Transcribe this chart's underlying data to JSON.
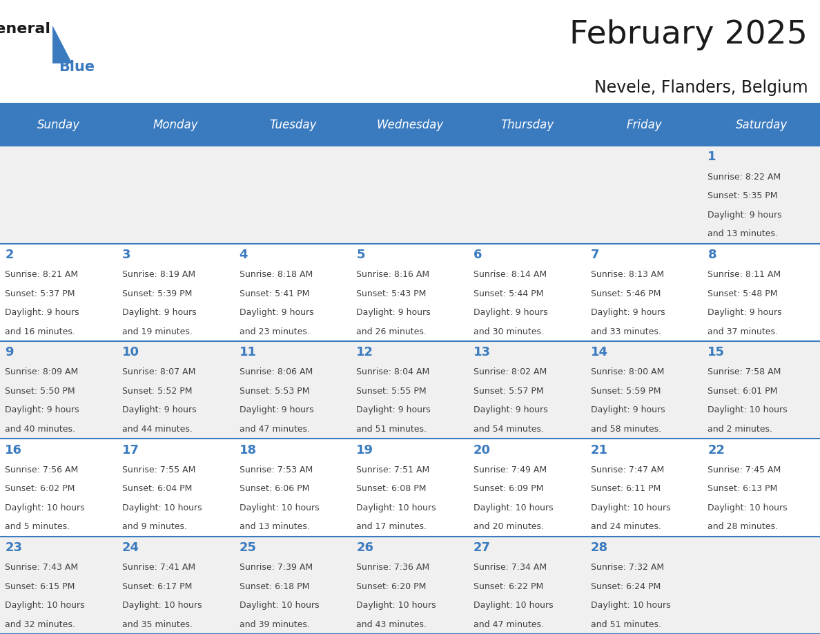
{
  "title": "February 2025",
  "subtitle": "Nevele, Flanders, Belgium",
  "header_color": "#3a7abf",
  "header_text_color": "#ffffff",
  "cell_bg_odd": "#f0f0f0",
  "cell_bg_even": "#ffffff",
  "day_text_color": "#3a7abf",
  "info_text_color": "#404040",
  "border_color": "#3a7abf",
  "days_of_week": [
    "Sunday",
    "Monday",
    "Tuesday",
    "Wednesday",
    "Thursday",
    "Friday",
    "Saturday"
  ],
  "weeks": [
    [
      {
        "day": null,
        "sunrise": null,
        "sunset": null,
        "daylight": null
      },
      {
        "day": null,
        "sunrise": null,
        "sunset": null,
        "daylight": null
      },
      {
        "day": null,
        "sunrise": null,
        "sunset": null,
        "daylight": null
      },
      {
        "day": null,
        "sunrise": null,
        "sunset": null,
        "daylight": null
      },
      {
        "day": null,
        "sunrise": null,
        "sunset": null,
        "daylight": null
      },
      {
        "day": null,
        "sunrise": null,
        "sunset": null,
        "daylight": null
      },
      {
        "day": 1,
        "sunrise": "8:22 AM",
        "sunset": "5:35 PM",
        "daylight": "9 hours\nand 13 minutes."
      }
    ],
    [
      {
        "day": 2,
        "sunrise": "8:21 AM",
        "sunset": "5:37 PM",
        "daylight": "9 hours\nand 16 minutes."
      },
      {
        "day": 3,
        "sunrise": "8:19 AM",
        "sunset": "5:39 PM",
        "daylight": "9 hours\nand 19 minutes."
      },
      {
        "day": 4,
        "sunrise": "8:18 AM",
        "sunset": "5:41 PM",
        "daylight": "9 hours\nand 23 minutes."
      },
      {
        "day": 5,
        "sunrise": "8:16 AM",
        "sunset": "5:43 PM",
        "daylight": "9 hours\nand 26 minutes."
      },
      {
        "day": 6,
        "sunrise": "8:14 AM",
        "sunset": "5:44 PM",
        "daylight": "9 hours\nand 30 minutes."
      },
      {
        "day": 7,
        "sunrise": "8:13 AM",
        "sunset": "5:46 PM",
        "daylight": "9 hours\nand 33 minutes."
      },
      {
        "day": 8,
        "sunrise": "8:11 AM",
        "sunset": "5:48 PM",
        "daylight": "9 hours\nand 37 minutes."
      }
    ],
    [
      {
        "day": 9,
        "sunrise": "8:09 AM",
        "sunset": "5:50 PM",
        "daylight": "9 hours\nand 40 minutes."
      },
      {
        "day": 10,
        "sunrise": "8:07 AM",
        "sunset": "5:52 PM",
        "daylight": "9 hours\nand 44 minutes."
      },
      {
        "day": 11,
        "sunrise": "8:06 AM",
        "sunset": "5:53 PM",
        "daylight": "9 hours\nand 47 minutes."
      },
      {
        "day": 12,
        "sunrise": "8:04 AM",
        "sunset": "5:55 PM",
        "daylight": "9 hours\nand 51 minutes."
      },
      {
        "day": 13,
        "sunrise": "8:02 AM",
        "sunset": "5:57 PM",
        "daylight": "9 hours\nand 54 minutes."
      },
      {
        "day": 14,
        "sunrise": "8:00 AM",
        "sunset": "5:59 PM",
        "daylight": "9 hours\nand 58 minutes."
      },
      {
        "day": 15,
        "sunrise": "7:58 AM",
        "sunset": "6:01 PM",
        "daylight": "10 hours\nand 2 minutes."
      }
    ],
    [
      {
        "day": 16,
        "sunrise": "7:56 AM",
        "sunset": "6:02 PM",
        "daylight": "10 hours\nand 5 minutes."
      },
      {
        "day": 17,
        "sunrise": "7:55 AM",
        "sunset": "6:04 PM",
        "daylight": "10 hours\nand 9 minutes."
      },
      {
        "day": 18,
        "sunrise": "7:53 AM",
        "sunset": "6:06 PM",
        "daylight": "10 hours\nand 13 minutes."
      },
      {
        "day": 19,
        "sunrise": "7:51 AM",
        "sunset": "6:08 PM",
        "daylight": "10 hours\nand 17 minutes."
      },
      {
        "day": 20,
        "sunrise": "7:49 AM",
        "sunset": "6:09 PM",
        "daylight": "10 hours\nand 20 minutes."
      },
      {
        "day": 21,
        "sunrise": "7:47 AM",
        "sunset": "6:11 PM",
        "daylight": "10 hours\nand 24 minutes."
      },
      {
        "day": 22,
        "sunrise": "7:45 AM",
        "sunset": "6:13 PM",
        "daylight": "10 hours\nand 28 minutes."
      }
    ],
    [
      {
        "day": 23,
        "sunrise": "7:43 AM",
        "sunset": "6:15 PM",
        "daylight": "10 hours\nand 32 minutes."
      },
      {
        "day": 24,
        "sunrise": "7:41 AM",
        "sunset": "6:17 PM",
        "daylight": "10 hours\nand 35 minutes."
      },
      {
        "day": 25,
        "sunrise": "7:39 AM",
        "sunset": "6:18 PM",
        "daylight": "10 hours\nand 39 minutes."
      },
      {
        "day": 26,
        "sunrise": "7:36 AM",
        "sunset": "6:20 PM",
        "daylight": "10 hours\nand 43 minutes."
      },
      {
        "day": 27,
        "sunrise": "7:34 AM",
        "sunset": "6:22 PM",
        "daylight": "10 hours\nand 47 minutes."
      },
      {
        "day": 28,
        "sunrise": "7:32 AM",
        "sunset": "6:24 PM",
        "daylight": "10 hours\nand 51 minutes."
      },
      {
        "day": null,
        "sunrise": null,
        "sunset": null,
        "daylight": null
      }
    ]
  ],
  "logo_text_general": "General",
  "logo_text_blue": "Blue",
  "logo_color_general": "#1a1a1a",
  "logo_color_blue": "#3a7abf",
  "fig_width": 11.88,
  "fig_height": 9.18,
  "dpi": 100
}
